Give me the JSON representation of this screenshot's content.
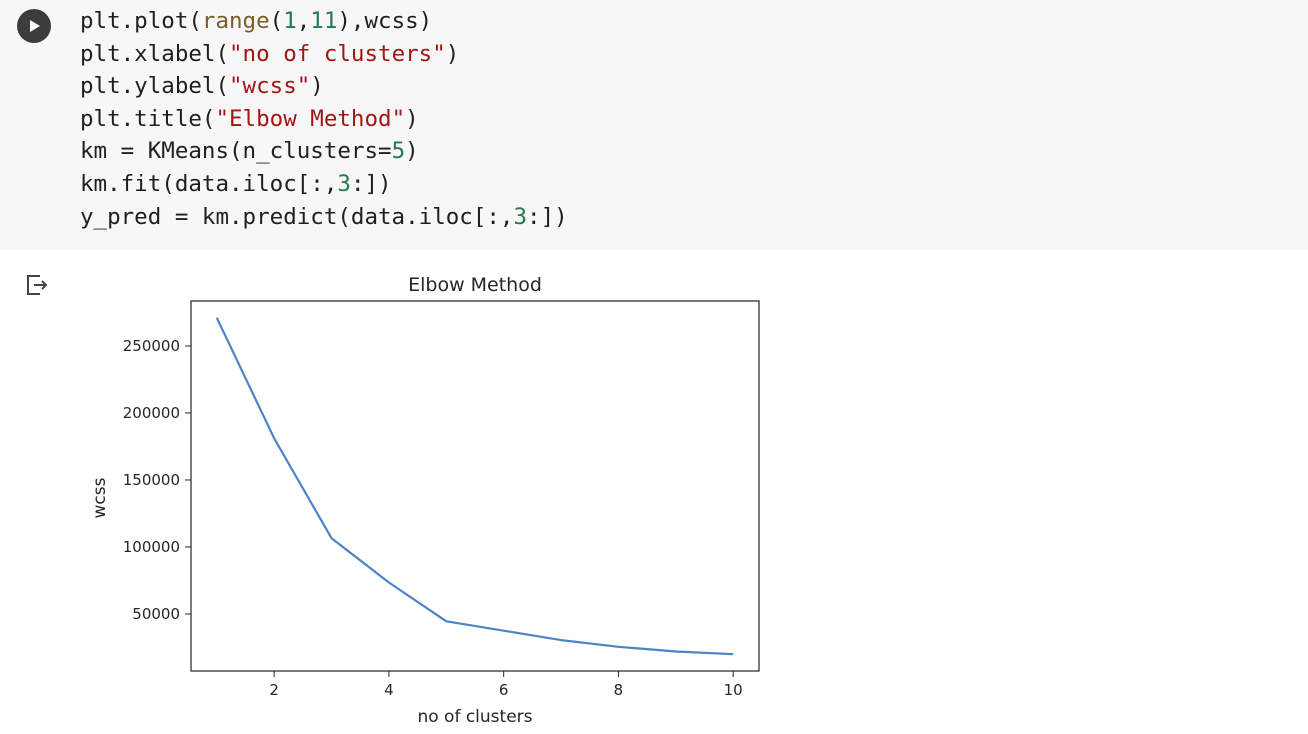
{
  "code_cell": {
    "run_button": "play-icon",
    "lines": [
      [
        {
          "t": "plt.plot(",
          "c": ""
        },
        {
          "t": "range",
          "c": "builtin"
        },
        {
          "t": "(",
          "c": ""
        },
        {
          "t": "1",
          "c": "num"
        },
        {
          "t": ",",
          "c": ""
        },
        {
          "t": "11",
          "c": "num"
        },
        {
          "t": "),wcss)",
          "c": ""
        }
      ],
      [
        {
          "t": "plt.xlabel(",
          "c": ""
        },
        {
          "t": "\"no of clusters\"",
          "c": "str"
        },
        {
          "t": ")",
          "c": ""
        }
      ],
      [
        {
          "t": "plt.ylabel(",
          "c": ""
        },
        {
          "t": "\"wcss\"",
          "c": "str"
        },
        {
          "t": ")",
          "c": ""
        }
      ],
      [
        {
          "t": "plt.title(",
          "c": ""
        },
        {
          "t": "\"Elbow Method\"",
          "c": "str"
        },
        {
          "t": ")",
          "c": ""
        }
      ],
      [
        {
          "t": "km = KMeans(n_clusters=",
          "c": ""
        },
        {
          "t": "5",
          "c": "num"
        },
        {
          "t": ")",
          "c": ""
        }
      ],
      [
        {
          "t": "km.fit(data.iloc[:,",
          "c": ""
        },
        {
          "t": "3",
          "c": "num"
        },
        {
          "t": ":])",
          "c": ""
        }
      ],
      [
        {
          "t": "y_pred = km.predict(data.iloc[:,",
          "c": ""
        },
        {
          "t": "3",
          "c": "num"
        },
        {
          "t": ":])",
          "c": ""
        }
      ]
    ]
  },
  "output": {
    "icon": "output-arrow-icon"
  },
  "chart_data": {
    "type": "line",
    "title": "Elbow Method",
    "xlabel": "no of clusters",
    "ylabel": "wcss",
    "x": [
      1,
      2,
      3,
      4,
      5,
      6,
      7,
      8,
      9,
      10
    ],
    "series": [
      {
        "name": "wcss",
        "values": [
          271000,
          181000,
          106500,
          73500,
          44500,
          37500,
          30500,
          25500,
          22000,
          20000
        ],
        "color": "#4c84c4"
      }
    ],
    "xticks": [
      2,
      4,
      6,
      8,
      10
    ],
    "xtick_labels": [
      "2",
      "4",
      "6",
      "8",
      "10"
    ],
    "yticks": [
      50000,
      100000,
      150000,
      200000,
      250000
    ],
    "ytick_labels": [
      "50000",
      "100000",
      "150000",
      "200000",
      "250000"
    ],
    "xlim": [
      0.55,
      10.45
    ],
    "ylim": [
      7450,
      283550
    ],
    "grid": false
  }
}
